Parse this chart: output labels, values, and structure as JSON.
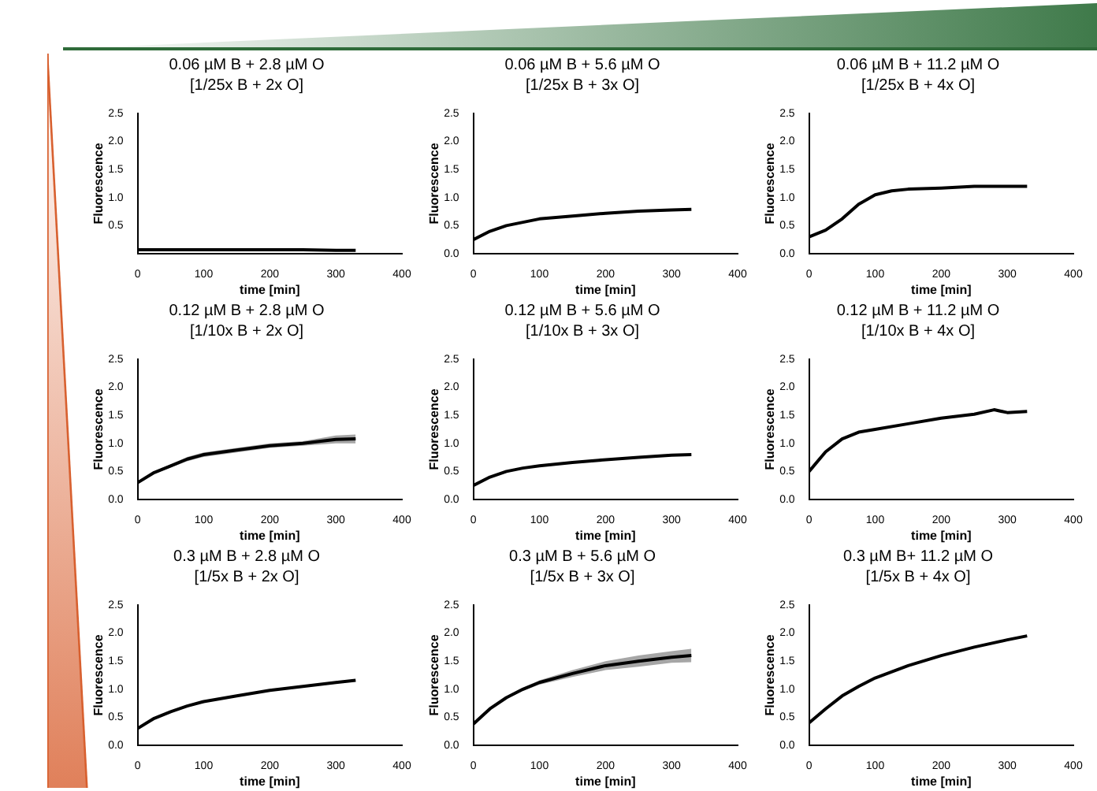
{
  "chart_data": [
    {
      "type": "line",
      "title": "0.06 µM B + 2.8 µM O",
      "subtitle": "[1/25x B + 2x O]",
      "xlabel": "time [min]",
      "ylabel": "Fluorescence",
      "x": [
        0,
        25,
        50,
        75,
        100,
        150,
        200,
        250,
        300,
        330
      ],
      "series": [
        {
          "color": "#000000",
          "values": [
            0.07,
            0.07,
            0.07,
            0.07,
            0.07,
            0.07,
            0.07,
            0.07,
            0.06,
            0.06
          ]
        }
      ],
      "xlim": [
        0,
        400
      ],
      "xticks": [
        0,
        100,
        200,
        300,
        400
      ],
      "ylim": [
        0,
        2.5
      ],
      "yticks": [
        {
          "value": 0.5,
          "label": "0.5"
        },
        {
          "value": 1,
          "label": "1.0"
        },
        {
          "value": 1.5,
          "label": "1.5"
        },
        {
          "value": 2,
          "label": "2.0"
        },
        {
          "value": 2.5,
          "label": "2.5"
        }
      ],
      "grid": false,
      "legend": false,
      "marker": "none",
      "line_style": "solid"
    },
    {
      "type": "line",
      "title": "0.06 µM B + 5.6 µM O",
      "subtitle": "[1/25x B + 3x O]",
      "xlabel": "time [min]",
      "ylabel": "Fluorescence",
      "x": [
        0,
        25,
        50,
        75,
        100,
        150,
        200,
        250,
        300,
        330
      ],
      "series": [
        {
          "color": "#000000",
          "values": [
            0.25,
            0.4,
            0.5,
            0.56,
            0.62,
            0.67,
            0.72,
            0.76,
            0.78,
            0.79
          ]
        }
      ],
      "xlim": [
        0,
        400
      ],
      "xticks": [
        0,
        100,
        200,
        300,
        400
      ],
      "ylim": [
        0,
        2.5
      ],
      "yticks": [
        {
          "value": 0,
          "label": "0.0"
        },
        {
          "value": 0.5,
          "label": "0.5"
        },
        {
          "value": 1,
          "label": "1.0"
        },
        {
          "value": 1.5,
          "label": "1.5"
        },
        {
          "value": 2,
          "label": "2.0"
        },
        {
          "value": 2.5,
          "label": "2.5"
        }
      ],
      "grid": false,
      "legend": false,
      "marker": "none",
      "line_style": "solid"
    },
    {
      "type": "line",
      "title": "0.06 µM B + 11.2 µM O",
      "subtitle": "[1/25x B + 4x O]",
      "xlabel": "time [min]",
      "ylabel": "Fluorescence",
      "x": [
        0,
        25,
        50,
        75,
        100,
        125,
        150,
        200,
        250,
        300,
        330
      ],
      "series": [
        {
          "color": "#000000",
          "values": [
            0.3,
            0.42,
            0.62,
            0.88,
            1.05,
            1.12,
            1.15,
            1.17,
            1.2,
            1.2,
            1.2
          ]
        }
      ],
      "xlim": [
        0,
        400
      ],
      "xticks": [
        0,
        100,
        200,
        300,
        400
      ],
      "ylim": [
        0,
        2.5
      ],
      "yticks": [
        {
          "value": 0,
          "label": "0.0"
        },
        {
          "value": 0.5,
          "label": "0.5"
        },
        {
          "value": 1,
          "label": "1.0"
        },
        {
          "value": 1.5,
          "label": "1.5"
        },
        {
          "value": 2,
          "label": "2.0"
        },
        {
          "value": 2.5,
          "label": "2.5"
        }
      ],
      "grid": false,
      "legend": false,
      "marker": "none",
      "line_style": "solid"
    },
    {
      "type": "line",
      "title": "0.12 µM B + 2.8 µM O",
      "subtitle": "[1/10x B + 2x O]",
      "xlabel": "time [min]",
      "ylabel": "Fluorescence",
      "x": [
        0,
        25,
        50,
        75,
        100,
        150,
        200,
        250,
        300,
        330
      ],
      "series": [
        {
          "color": "#000000",
          "values": [
            0.3,
            0.48,
            0.6,
            0.72,
            0.8,
            0.88,
            0.96,
            1.0,
            1.07,
            1.08
          ],
          "lower": [
            0.3,
            0.46,
            0.57,
            0.68,
            0.76,
            0.84,
            0.92,
            0.96,
            1.0,
            1.0
          ],
          "upper": [
            0.3,
            0.5,
            0.63,
            0.76,
            0.84,
            0.92,
            1.0,
            1.04,
            1.14,
            1.16
          ]
        }
      ],
      "xlim": [
        0,
        400
      ],
      "xticks": [
        0,
        100,
        200,
        300,
        400
      ],
      "ylim": [
        0,
        2.5
      ],
      "yticks": [
        {
          "value": 0,
          "label": "0.0"
        },
        {
          "value": 0.5,
          "label": "0.5"
        },
        {
          "value": 1,
          "label": "1.0"
        },
        {
          "value": 1.5,
          "label": "1.5"
        },
        {
          "value": 2,
          "label": "2.0"
        },
        {
          "value": 2.5,
          "label": "2.5"
        }
      ],
      "grid": false,
      "legend": false,
      "marker": "none",
      "line_style": "solid"
    },
    {
      "type": "line",
      "title": "0.12 µM B + 5.6 µM O",
      "subtitle": "[1/10x B + 3x O]",
      "xlabel": "time [min]",
      "ylabel": "Fluorescence",
      "x": [
        0,
        25,
        50,
        75,
        100,
        150,
        190,
        250,
        300,
        330
      ],
      "series": [
        {
          "color": "#000000",
          "values": [
            0.25,
            0.4,
            0.5,
            0.56,
            0.6,
            0.66,
            0.7,
            0.75,
            0.79,
            0.8
          ]
        }
      ],
      "xlim": [
        0,
        400
      ],
      "xticks": [
        0,
        100,
        200,
        300,
        400
      ],
      "ylim": [
        0,
        2.5
      ],
      "yticks": [
        {
          "value": 0,
          "label": "0.0"
        },
        {
          "value": 0.5,
          "label": "0.5"
        },
        {
          "value": 1,
          "label": "1.0"
        },
        {
          "value": 1.5,
          "label": "1.5"
        },
        {
          "value": 2,
          "label": "2.0"
        },
        {
          "value": 2.5,
          "label": "2.5"
        }
      ],
      "grid": false,
      "legend": false,
      "marker": "none",
      "line_style": "solid"
    },
    {
      "type": "line",
      "title": "0.12 µM B + 11.2 µM O",
      "subtitle": "[1/10x B + 4x O]",
      "xlabel": "time [min]",
      "ylabel": "Fluorescence",
      "x": [
        0,
        25,
        50,
        75,
        100,
        150,
        200,
        250,
        280,
        300,
        330
      ],
      "series": [
        {
          "color": "#000000",
          "values": [
            0.5,
            0.85,
            1.08,
            1.2,
            1.25,
            1.35,
            1.45,
            1.52,
            1.6,
            1.55,
            1.57
          ]
        }
      ],
      "xlim": [
        0,
        400
      ],
      "xticks": [
        0,
        100,
        200,
        300,
        400
      ],
      "ylim": [
        0,
        2.5
      ],
      "yticks": [
        {
          "value": 0,
          "label": "0.0"
        },
        {
          "value": 0.5,
          "label": "0.5"
        },
        {
          "value": 1,
          "label": "1.0"
        },
        {
          "value": 1.5,
          "label": "1.5"
        },
        {
          "value": 2,
          "label": "2.0"
        },
        {
          "value": 2.5,
          "label": "2.5"
        }
      ],
      "grid": false,
      "legend": false,
      "marker": "none",
      "line_style": "solid"
    },
    {
      "type": "line",
      "title": "0.3 µM B + 2.8 µM O",
      "subtitle": "[1/5x B + 2x O]",
      "xlabel": "time [min]",
      "ylabel": "Fluorescence",
      "x": [
        0,
        25,
        50,
        75,
        100,
        150,
        200,
        250,
        300,
        330
      ],
      "series": [
        {
          "color": "#000000",
          "values": [
            0.3,
            0.48,
            0.6,
            0.7,
            0.78,
            0.88,
            0.98,
            1.05,
            1.12,
            1.16
          ]
        }
      ],
      "xlim": [
        0,
        400
      ],
      "xticks": [
        0,
        100,
        200,
        300,
        400
      ],
      "ylim": [
        0,
        2.5
      ],
      "yticks": [
        {
          "value": 0,
          "label": "0.0"
        },
        {
          "value": 0.5,
          "label": "0.5"
        },
        {
          "value": 1,
          "label": "1.0"
        },
        {
          "value": 1.5,
          "label": "1.5"
        },
        {
          "value": 2,
          "label": "2.0"
        },
        {
          "value": 2.5,
          "label": "2.5"
        }
      ],
      "grid": false,
      "legend": false,
      "marker": "none",
      "line_style": "solid"
    },
    {
      "type": "line",
      "title": "0.3 µM B + 5.6 µM O",
      "subtitle": "[1/5x B + 3x O]",
      "xlabel": "time [min]",
      "ylabel": "Fluorescence",
      "x": [
        0,
        25,
        50,
        75,
        100,
        150,
        200,
        250,
        300,
        330
      ],
      "series": [
        {
          "color": "#000000",
          "values": [
            0.38,
            0.65,
            0.85,
            1.0,
            1.12,
            1.28,
            1.42,
            1.5,
            1.57,
            1.6
          ],
          "lower": [
            0.38,
            0.64,
            0.83,
            0.97,
            1.08,
            1.22,
            1.34,
            1.4,
            1.47,
            1.48
          ],
          "upper": [
            0.38,
            0.66,
            0.87,
            1.03,
            1.16,
            1.34,
            1.5,
            1.6,
            1.68,
            1.72
          ]
        }
      ],
      "xlim": [
        0,
        400
      ],
      "xticks": [
        0,
        100,
        200,
        300,
        400
      ],
      "ylim": [
        0,
        2.5
      ],
      "yticks": [
        {
          "value": 0,
          "label": "0.0"
        },
        {
          "value": 0.5,
          "label": "0.5"
        },
        {
          "value": 1,
          "label": "1.0"
        },
        {
          "value": 1.5,
          "label": "1.5"
        },
        {
          "value": 2,
          "label": "2.0"
        },
        {
          "value": 2.5,
          "label": "2.5"
        }
      ],
      "grid": false,
      "legend": false,
      "marker": "none",
      "line_style": "solid"
    },
    {
      "type": "line",
      "title": "0.3 µM B+ 11.2 µM O",
      "subtitle": "[1/5x B + 4x O]",
      "xlabel": "time [min]",
      "ylabel": "Fluorescence",
      "x": [
        0,
        25,
        50,
        75,
        100,
        150,
        200,
        250,
        300,
        330
      ],
      "series": [
        {
          "color": "#000000",
          "values": [
            0.4,
            0.65,
            0.88,
            1.05,
            1.2,
            1.42,
            1.6,
            1.75,
            1.88,
            1.95
          ]
        }
      ],
      "xlim": [
        0,
        400
      ],
      "xticks": [
        0,
        100,
        200,
        300,
        400
      ],
      "ylim": [
        0,
        2.5
      ],
      "yticks": [
        {
          "value": 0,
          "label": "0.0"
        },
        {
          "value": 0.5,
          "label": "0.5"
        },
        {
          "value": 1,
          "label": "1.0"
        },
        {
          "value": 1.5,
          "label": "1.5"
        },
        {
          "value": 2,
          "label": "2.0"
        },
        {
          "value": 2.5,
          "label": "2.5"
        }
      ],
      "grid": false,
      "legend": false,
      "marker": "none",
      "line_style": "solid"
    }
  ]
}
